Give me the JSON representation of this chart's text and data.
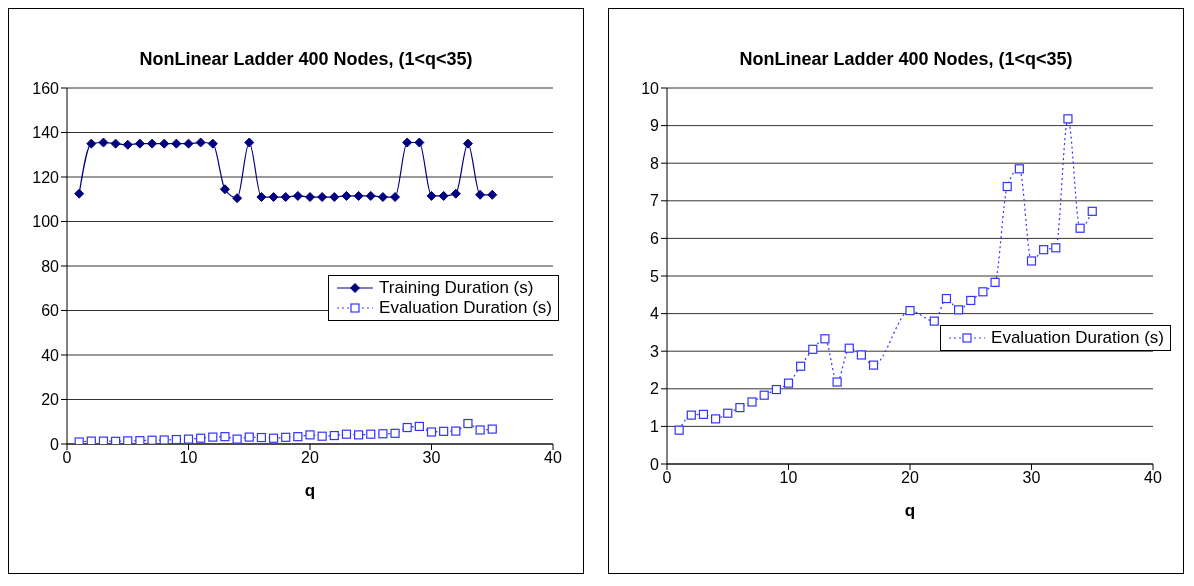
{
  "chart_data": [
    {
      "type": "line",
      "title": "NonLinear Ladder 400 Nodes, (1<q<35)",
      "xlabel": "q",
      "x": [
        1,
        2,
        3,
        4,
        5,
        6,
        7,
        8,
        9,
        10,
        11,
        12,
        13,
        14,
        15,
        16,
        17,
        18,
        19,
        20,
        21,
        22,
        23,
        24,
        25,
        26,
        27,
        28,
        29,
        30,
        31,
        32,
        33,
        34,
        35
      ],
      "xlim": [
        0,
        40
      ],
      "xticks": [
        0,
        10,
        20,
        30,
        40
      ],
      "ylim": [
        0,
        160
      ],
      "yticks": [
        0,
        20,
        40,
        60,
        80,
        100,
        120,
        140,
        160
      ],
      "grid": "y",
      "legend": "right",
      "series": [
        {
          "name": "Training Duration (s)",
          "color": "#000080",
          "marker": "diamond",
          "line_style": "solid",
          "values": [
            112.5,
            135,
            135.5,
            135,
            134.5,
            135,
            135,
            135,
            135,
            135,
            135.5,
            135,
            114.5,
            110.5,
            135.5,
            111,
            111,
            111,
            111.5,
            111,
            111,
            111,
            111.5,
            111.5,
            111.5,
            111,
            111,
            135.5,
            135.5,
            111.5,
            111.5,
            112.5,
            135,
            112,
            112
          ]
        },
        {
          "name": "Evaluation Duration (s)",
          "color": "#3333ff",
          "marker": "square",
          "line_style": "dotted",
          "values": [
            0.9,
            1.3,
            1.3,
            1.2,
            1.4,
            1.5,
            1.7,
            1.8,
            2,
            2.2,
            2.6,
            3.1,
            3.3,
            2.2,
            3.1,
            2.9,
            2.6,
            3,
            3.3,
            4.1,
            3.5,
            3.8,
            4.4,
            4.1,
            4.4,
            4.6,
            4.8,
            7.4,
            7.9,
            5.4,
            5.7,
            5.8,
            9.2,
            6.3,
            6.7
          ]
        }
      ]
    },
    {
      "type": "line",
      "title": "NonLinear Ladder 400 Nodes, (1<q<35)",
      "xlabel": "q",
      "x": [
        1,
        2,
        3,
        4,
        5,
        6,
        7,
        8,
        9,
        10,
        11,
        12,
        13,
        14,
        15,
        16,
        17,
        18,
        19,
        20,
        21,
        22,
        23,
        24,
        25,
        26,
        27,
        28,
        29,
        30,
        31,
        32,
        33,
        34,
        35
      ],
      "xlim": [
        0,
        40
      ],
      "xticks": [
        0,
        10,
        20,
        30,
        40
      ],
      "ylim": [
        0,
        10
      ],
      "yticks": [
        0,
        1,
        2,
        3,
        4,
        5,
        6,
        7,
        8,
        9,
        10
      ],
      "grid": "y",
      "legend": "bottom right",
      "series": [
        {
          "name": "Evaluation Duration (s)",
          "color": "#3333ff",
          "marker": "square",
          "line_style": "dotted",
          "values": [
            0.9,
            1.3,
            1.32,
            1.2,
            1.35,
            1.5,
            1.65,
            1.83,
            1.98,
            2.15,
            2.6,
            3.05,
            3.33,
            2.18,
            3.08,
            2.9,
            2.63,
            null,
            null,
            4.08,
            null,
            3.8,
            4.4,
            4.1,
            4.35,
            4.58,
            4.83,
            7.38,
            7.85,
            5.4,
            5.7,
            5.75,
            9.18,
            6.27,
            6.72
          ]
        }
      ]
    }
  ]
}
